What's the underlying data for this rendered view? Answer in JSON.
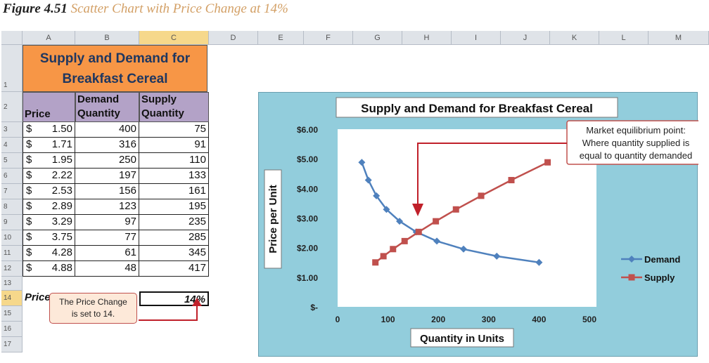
{
  "caption": {
    "number": "Figure 4.51",
    "title": "Scatter Chart with Price Change at 14%"
  },
  "sheet": {
    "columns": [
      "A",
      "B",
      "C",
      "D",
      "E",
      "F",
      "G",
      "H",
      "I",
      "J",
      "K",
      "L",
      "M"
    ],
    "selected_column": "C",
    "rows": [
      "1",
      "2",
      "3",
      "4",
      "5",
      "6",
      "7",
      "8",
      "9",
      "10",
      "11",
      "12",
      "13",
      "14",
      "15",
      "16",
      "17"
    ],
    "selected_row": "14",
    "table_title": [
      "Supply and Demand for",
      "Breakfast Cereal"
    ],
    "headers": {
      "price": "Price",
      "demand": [
        "Demand",
        "Quantity"
      ],
      "supply": [
        "Supply",
        "Quantity"
      ]
    },
    "currency_symbol": "$",
    "data": [
      {
        "price": "1.50",
        "demand": "400",
        "supply": "75"
      },
      {
        "price": "1.71",
        "demand": "316",
        "supply": "91"
      },
      {
        "price": "1.95",
        "demand": "250",
        "supply": "110"
      },
      {
        "price": "2.22",
        "demand": "197",
        "supply": "133"
      },
      {
        "price": "2.53",
        "demand": "156",
        "supply": "161"
      },
      {
        "price": "2.89",
        "demand": "123",
        "supply": "195"
      },
      {
        "price": "3.29",
        "demand": "97",
        "supply": "235"
      },
      {
        "price": "3.75",
        "demand": "77",
        "supply": "285"
      },
      {
        "price": "4.28",
        "demand": "61",
        "supply": "345"
      },
      {
        "price": "4.88",
        "demand": "48",
        "supply": "417"
      }
    ],
    "price_change_label": "Price Change",
    "price_change_value": "14%",
    "callout": [
      "The Price Change",
      "is set to 14."
    ]
  },
  "chart_data": {
    "type": "scatter",
    "title": "Supply and Demand for Breakfast Cereal",
    "xlabel": "Quantity in Units",
    "ylabel": "Price per Unit",
    "xlim": [
      0,
      500
    ],
    "ylim": [
      0,
      6
    ],
    "x_ticks": [
      "0",
      "100",
      "200",
      "300",
      "400",
      "500"
    ],
    "y_ticks": [
      "$-",
      "$1.00",
      "$2.00",
      "$3.00",
      "$4.00",
      "$5.00",
      "$6.00"
    ],
    "grid": false,
    "legend": "right",
    "series": [
      {
        "name": "Demand",
        "color": "#4f81bd",
        "marker": "diamond",
        "points": [
          [
            400,
            1.5
          ],
          [
            316,
            1.71
          ],
          [
            250,
            1.95
          ],
          [
            197,
            2.22
          ],
          [
            156,
            2.53
          ],
          [
            123,
            2.89
          ],
          [
            97,
            3.29
          ],
          [
            77,
            3.75
          ],
          [
            61,
            4.28
          ],
          [
            48,
            4.88
          ]
        ]
      },
      {
        "name": "Supply",
        "color": "#c0504d",
        "marker": "square",
        "points": [
          [
            75,
            1.5
          ],
          [
            91,
            1.71
          ],
          [
            110,
            1.95
          ],
          [
            133,
            2.22
          ],
          [
            161,
            2.53
          ],
          [
            195,
            2.89
          ],
          [
            235,
            3.29
          ],
          [
            285,
            3.75
          ],
          [
            345,
            4.28
          ],
          [
            417,
            4.88
          ]
        ]
      }
    ],
    "annotation": [
      "Market equilibrium point:",
      "Where quantity supplied is",
      "equal to quantity demanded"
    ]
  }
}
